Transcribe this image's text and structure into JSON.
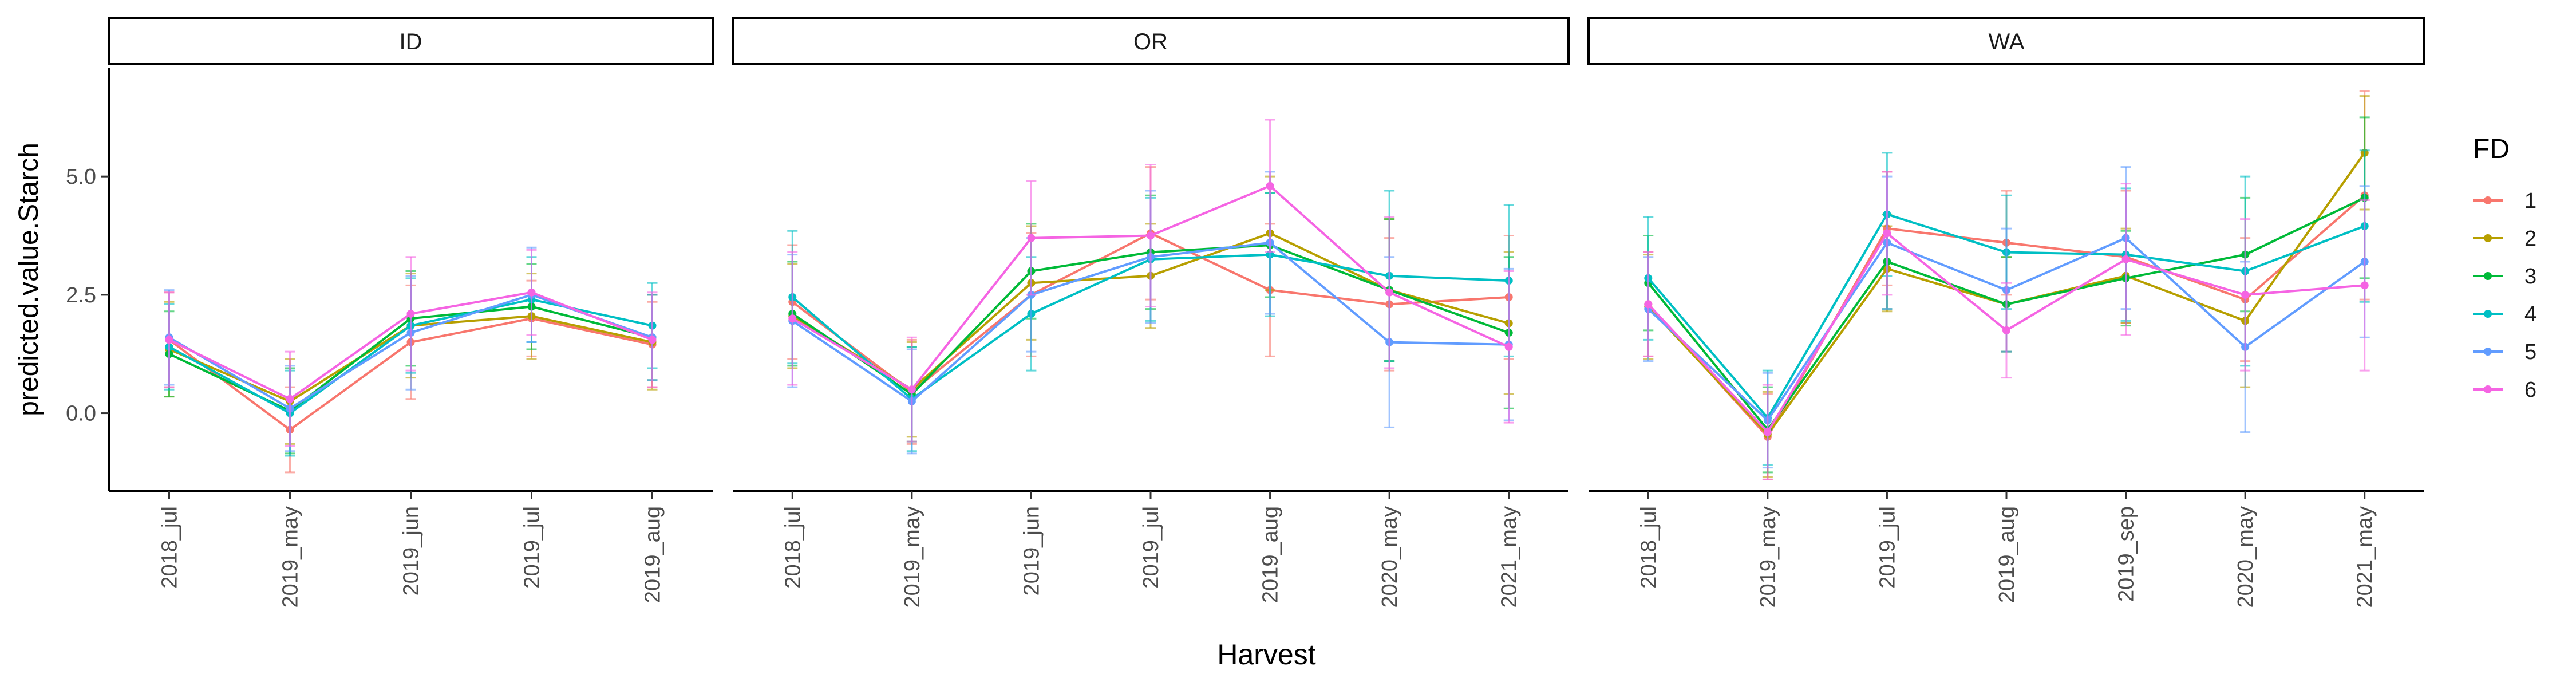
{
  "chart_data": {
    "type": "line",
    "ylabel": "predicted.value.Starch",
    "xlabel": "Harvest",
    "ylim": [
      -1.65,
      7.3
    ],
    "yticks": [
      0.0,
      2.5,
      5.0
    ],
    "ytick_labels": [
      "0.0",
      "2.5",
      "5.0"
    ],
    "grid": false,
    "legend": {
      "title": "FD",
      "position": "right",
      "entries": [
        "1",
        "2",
        "3",
        "4",
        "5",
        "6"
      ]
    },
    "series_colors": [
      "#F8766D",
      "#B79F00",
      "#00BA38",
      "#00BFC4",
      "#619CFF",
      "#F564E3"
    ],
    "panels": [
      {
        "title": "ID",
        "categories": [
          "2018_jul",
          "2019_may",
          "2019_jun",
          "2019_jul",
          "2019_aug"
        ],
        "series": [
          {
            "name": "1",
            "values": [
              1.55,
              -0.35,
              1.5,
              2.0,
              1.45
            ],
            "err": [
              1.0,
              0.9,
              1.2,
              0.8,
              0.9
            ]
          },
          {
            "name": "2",
            "values": [
              1.35,
              0.25,
              1.85,
              2.05,
              1.5
            ],
            "err": [
              1.0,
              0.9,
              1.1,
              0.9,
              1.0
            ]
          },
          {
            "name": "3",
            "values": [
              1.25,
              0.05,
              2.0,
              2.25,
              1.6
            ],
            "err": [
              0.9,
              0.9,
              1.0,
              0.9,
              0.9
            ]
          },
          {
            "name": "4",
            "values": [
              1.4,
              0.0,
              1.85,
              2.4,
              1.85
            ],
            "err": [
              0.9,
              0.9,
              1.0,
              0.9,
              0.9
            ]
          },
          {
            "name": "5",
            "values": [
              1.6,
              0.1,
              1.7,
              2.5,
              1.6
            ],
            "err": [
              1.0,
              0.9,
              1.2,
              1.0,
              0.9
            ]
          },
          {
            "name": "6",
            "values": [
              1.55,
              0.3,
              2.1,
              2.55,
              1.55
            ],
            "err": [
              1.0,
              1.0,
              1.2,
              0.9,
              1.0
            ]
          }
        ]
      },
      {
        "title": "OR",
        "categories": [
          "2018_jul",
          "2019_may",
          "2019_jun",
          "2019_jul",
          "2019_aug",
          "2020_may",
          "2021_may"
        ],
        "series": [
          {
            "name": "1",
            "values": [
              2.35,
              0.45,
              2.5,
              3.8,
              2.6,
              2.3,
              2.45
            ],
            "err": [
              1.2,
              1.1,
              1.3,
              1.4,
              1.4,
              1.4,
              1.3
            ]
          },
          {
            "name": "2",
            "values": [
              2.05,
              0.5,
              2.75,
              2.9,
              3.8,
              2.6,
              1.9
            ],
            "err": [
              1.1,
              1.0,
              1.2,
              1.1,
              1.2,
              1.5,
              1.5
            ]
          },
          {
            "name": "3",
            "values": [
              2.1,
              0.4,
              3.0,
              3.4,
              3.55,
              2.6,
              1.7
            ],
            "err": [
              1.1,
              1.0,
              1.0,
              1.2,
              1.1,
              1.5,
              1.6
            ]
          },
          {
            "name": "4",
            "values": [
              2.45,
              0.3,
              2.1,
              3.25,
              3.35,
              2.9,
              2.8
            ],
            "err": [
              1.4,
              1.1,
              1.2,
              1.3,
              1.3,
              1.8,
              1.6
            ]
          },
          {
            "name": "5",
            "values": [
              1.95,
              0.25,
              2.5,
              3.3,
              3.6,
              1.5,
              1.45
            ],
            "err": [
              1.4,
              1.1,
              1.2,
              1.4,
              1.5,
              1.8,
              1.6
            ]
          },
          {
            "name": "6",
            "values": [
              2.0,
              0.5,
              3.7,
              3.75,
              4.8,
              2.55,
              1.4
            ],
            "err": [
              1.4,
              1.1,
              1.2,
              1.5,
              1.4,
              1.6,
              1.6
            ]
          }
        ]
      },
      {
        "title": "WA",
        "categories": [
          "2018_jul",
          "2019_may",
          "2019_jul",
          "2019_aug",
          "2019_sep",
          "2020_may",
          "2021_may"
        ],
        "series": [
          {
            "name": "1",
            "values": [
              2.3,
              -0.5,
              3.9,
              3.6,
              3.3,
              2.4,
              4.6
            ],
            "err": [
              1.1,
              0.9,
              1.2,
              1.1,
              1.4,
              1.3,
              2.2
            ]
          },
          {
            "name": "2",
            "values": [
              2.25,
              -0.45,
              3.05,
              2.3,
              2.9,
              1.95,
              5.5
            ],
            "err": [
              1.1,
              0.9,
              0.9,
              1.0,
              1.0,
              1.4,
              1.2
            ]
          },
          {
            "name": "3",
            "values": [
              2.75,
              -0.35,
              3.2,
              2.3,
              2.85,
              3.35,
              4.55
            ],
            "err": [
              1.0,
              0.9,
              1.0,
              1.0,
              1.0,
              1.2,
              1.7
            ]
          },
          {
            "name": "4",
            "values": [
              2.85,
              -0.1,
              4.2,
              3.4,
              3.35,
              3.0,
              3.95
            ],
            "err": [
              1.3,
              1.0,
              1.3,
              1.2,
              1.4,
              2.0,
              1.6
            ]
          },
          {
            "name": "5",
            "values": [
              2.2,
              -0.15,
              3.6,
              2.6,
              3.7,
              1.4,
              3.2
            ],
            "err": [
              1.1,
              1.0,
              1.4,
              1.3,
              1.5,
              1.8,
              1.6
            ]
          },
          {
            "name": "6",
            "values": [
              2.3,
              -0.4,
              3.8,
              1.75,
              3.25,
              2.5,
              2.7
            ],
            "err": [
              1.1,
              1.0,
              1.3,
              1.0,
              1.6,
              1.6,
              1.8
            ]
          }
        ]
      }
    ]
  }
}
